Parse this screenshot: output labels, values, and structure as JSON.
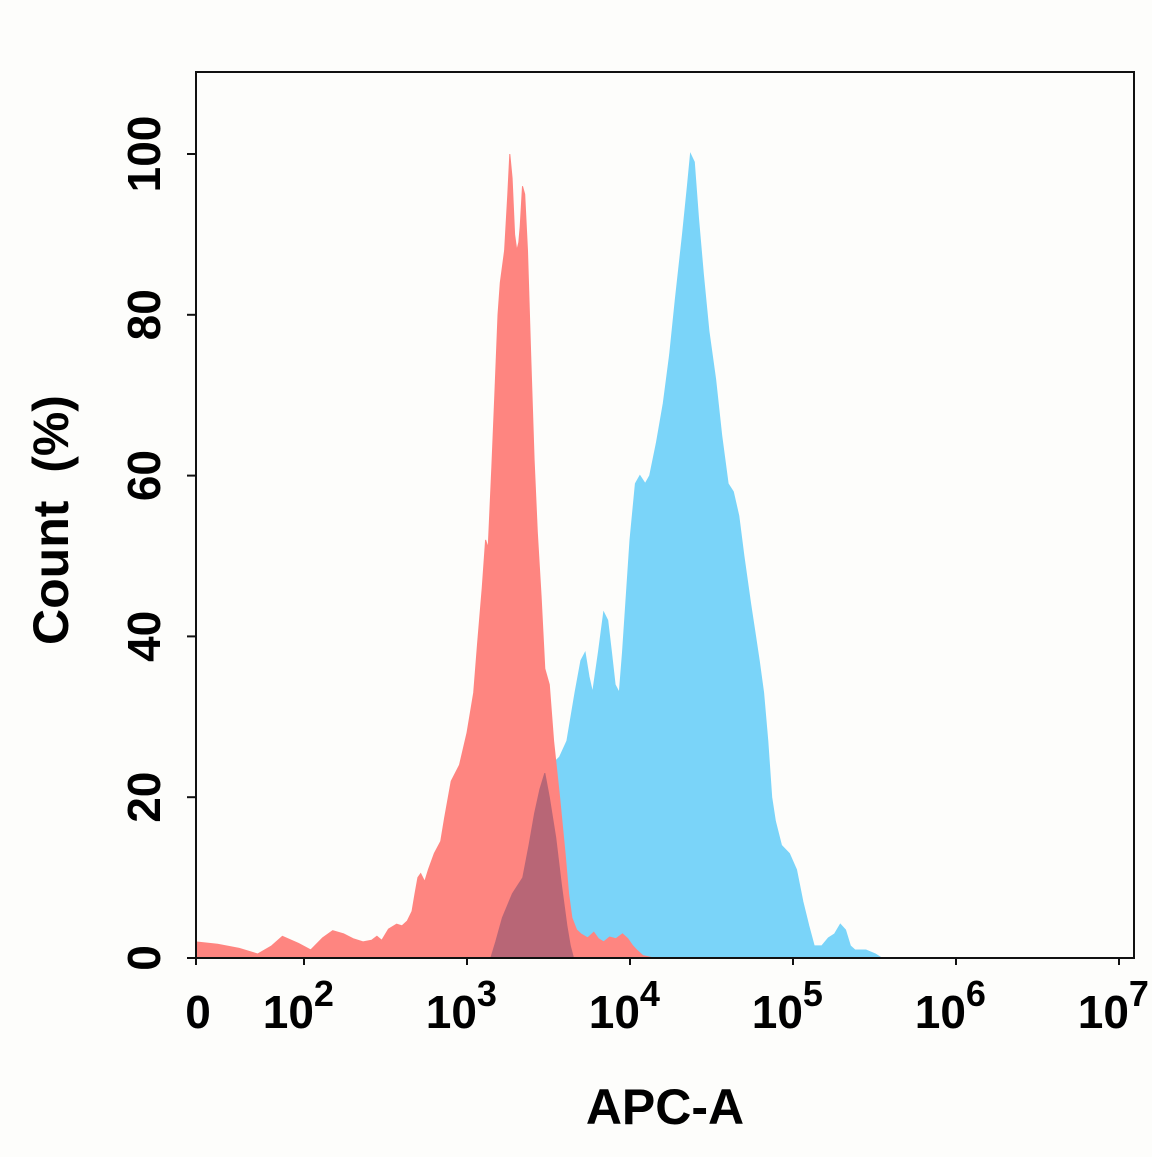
{
  "chart_data": {
    "type": "area",
    "title": "",
    "xlabel": "APC-A",
    "ylabel": "Count  (%)",
    "x_scale": "biexponential-log",
    "xlim": [
      0,
      10000000
    ],
    "ylim": [
      0,
      100
    ],
    "grid": false,
    "legend": "none",
    "y_ticks": [
      {
        "value": 0,
        "label": "0"
      },
      {
        "value": 20,
        "label": "20"
      },
      {
        "value": 40,
        "label": "40"
      },
      {
        "value": 60,
        "label": "60"
      },
      {
        "value": 80,
        "label": "80"
      },
      {
        "value": 100,
        "label": "100"
      }
    ],
    "x_ticks": [
      {
        "value": 0,
        "base": "0",
        "exp": ""
      },
      {
        "value": 100,
        "base": "10",
        "exp": "2"
      },
      {
        "value": 1000,
        "base": "10",
        "exp": "3"
      },
      {
        "value": 10000,
        "base": "10",
        "exp": "4"
      },
      {
        "value": 100000,
        "base": "10",
        "exp": "5"
      },
      {
        "value": 1000000,
        "base": "10",
        "exp": "6"
      },
      {
        "value": 10000000,
        "base": "10",
        "exp": "7"
      }
    ],
    "series": [
      {
        "color": "#7ad4f9",
        "points": [
          [
            1400,
            0
          ],
          [
            1500,
            2
          ],
          [
            1650,
            5
          ],
          [
            1900,
            8
          ],
          [
            2200,
            10
          ],
          [
            2400,
            14
          ],
          [
            2600,
            18
          ],
          [
            2800,
            21
          ],
          [
            3000,
            23
          ],
          [
            3300,
            24
          ],
          [
            3700,
            25
          ],
          [
            4100,
            27
          ],
          [
            4600,
            33
          ],
          [
            5000,
            37
          ],
          [
            5300,
            38
          ],
          [
            5600,
            35
          ],
          [
            5900,
            33
          ],
          [
            6400,
            38
          ],
          [
            6900,
            43
          ],
          [
            7300,
            42
          ],
          [
            7700,
            38
          ],
          [
            8100,
            34
          ],
          [
            8600,
            33
          ],
          [
            9000,
            38
          ],
          [
            10000,
            52
          ],
          [
            10800,
            59
          ],
          [
            11500,
            60
          ],
          [
            12400,
            59
          ],
          [
            13200,
            60
          ],
          [
            14500,
            64
          ],
          [
            16000,
            69
          ],
          [
            17500,
            75
          ],
          [
            19000,
            82
          ],
          [
            21000,
            90
          ],
          [
            22500,
            96
          ],
          [
            23500,
            100
          ],
          [
            24800,
            99
          ],
          [
            26300,
            92
          ],
          [
            28200,
            85
          ],
          [
            30500,
            78
          ],
          [
            33500,
            72
          ],
          [
            36500,
            65
          ],
          [
            40000,
            59
          ],
          [
            43000,
            58
          ],
          [
            46500,
            55
          ],
          [
            50000,
            50
          ],
          [
            55000,
            44
          ],
          [
            59000,
            40
          ],
          [
            62000,
            37
          ],
          [
            66000,
            33
          ],
          [
            70000,
            27
          ],
          [
            74000,
            20
          ],
          [
            78000,
            17
          ],
          [
            85000,
            14
          ],
          [
            95000,
            13
          ],
          [
            105000,
            11
          ],
          [
            115000,
            7
          ],
          [
            125000,
            4
          ],
          [
            135000,
            1.5
          ],
          [
            150000,
            1.5
          ],
          [
            165000,
            2.5
          ],
          [
            180000,
            3
          ],
          [
            195000,
            4.2
          ],
          [
            210000,
            3.5
          ],
          [
            225000,
            1.5
          ],
          [
            240000,
            1
          ],
          [
            280000,
            1
          ],
          [
            320000,
            0.5
          ],
          [
            350000,
            0
          ]
        ]
      },
      {
        "color": "#fe8580",
        "points": [
          [
            0,
            2
          ],
          [
            20,
            1.7
          ],
          [
            40,
            1.2
          ],
          [
            57,
            0.5
          ],
          [
            70,
            1.5
          ],
          [
            80,
            2.7
          ],
          [
            95,
            1.8
          ],
          [
            110,
            1
          ],
          [
            130,
            2.5
          ],
          [
            150,
            3.4
          ],
          [
            175,
            3
          ],
          [
            200,
            2.4
          ],
          [
            230,
            2
          ],
          [
            260,
            2.2
          ],
          [
            280,
            2.7
          ],
          [
            300,
            2.2
          ],
          [
            330,
            3.6
          ],
          [
            370,
            4.2
          ],
          [
            400,
            4
          ],
          [
            430,
            4.6
          ],
          [
            460,
            5.8
          ],
          [
            480,
            8
          ],
          [
            500,
            10
          ],
          [
            520,
            10.5
          ],
          [
            550,
            9.5
          ],
          [
            580,
            11
          ],
          [
            630,
            13
          ],
          [
            690,
            14.5
          ],
          [
            730,
            17.5
          ],
          [
            800,
            22
          ],
          [
            900,
            24
          ],
          [
            1000,
            28
          ],
          [
            1100,
            33
          ],
          [
            1160,
            39
          ],
          [
            1240,
            46
          ],
          [
            1300,
            52
          ],
          [
            1350,
            51
          ],
          [
            1420,
            61
          ],
          [
            1480,
            70
          ],
          [
            1550,
            80
          ],
          [
            1600,
            84
          ],
          [
            1700,
            88
          ],
          [
            1780,
            95
          ],
          [
            1830,
            100
          ],
          [
            1890,
            97
          ],
          [
            1960,
            90
          ],
          [
            2020,
            88
          ],
          [
            2080,
            89
          ],
          [
            2120,
            91
          ],
          [
            2190,
            96
          ],
          [
            2260,
            95
          ],
          [
            2350,
            88
          ],
          [
            2460,
            75
          ],
          [
            2580,
            62
          ],
          [
            2700,
            53
          ],
          [
            2850,
            45
          ],
          [
            3000,
            36
          ],
          [
            3200,
            34
          ],
          [
            3400,
            27
          ],
          [
            3700,
            20
          ],
          [
            4000,
            13
          ],
          [
            4200,
            8
          ],
          [
            4400,
            5
          ],
          [
            4700,
            3.5
          ],
          [
            5000,
            3
          ],
          [
            5500,
            2.5
          ],
          [
            6000,
            3.2
          ],
          [
            6400,
            2.4
          ],
          [
            6900,
            2
          ],
          [
            7500,
            2.6
          ],
          [
            8200,
            2.4
          ],
          [
            9000,
            3
          ],
          [
            9700,
            2.4
          ],
          [
            10400,
            1.5
          ],
          [
            11000,
            1
          ],
          [
            12000,
            0.3
          ],
          [
            14000,
            0
          ]
        ]
      },
      {
        "color": "#b86676",
        "points": [
          [
            1400,
            0
          ],
          [
            1500,
            2
          ],
          [
            1650,
            5
          ],
          [
            1900,
            8
          ],
          [
            2200,
            10
          ],
          [
            2400,
            14
          ],
          [
            2600,
            18
          ],
          [
            2800,
            21
          ],
          [
            3000,
            23
          ],
          [
            3200,
            20
          ],
          [
            3500,
            15
          ],
          [
            3800,
            9
          ],
          [
            4100,
            4
          ],
          [
            4300,
            1.5
          ],
          [
            4500,
            0
          ]
        ]
      }
    ]
  }
}
